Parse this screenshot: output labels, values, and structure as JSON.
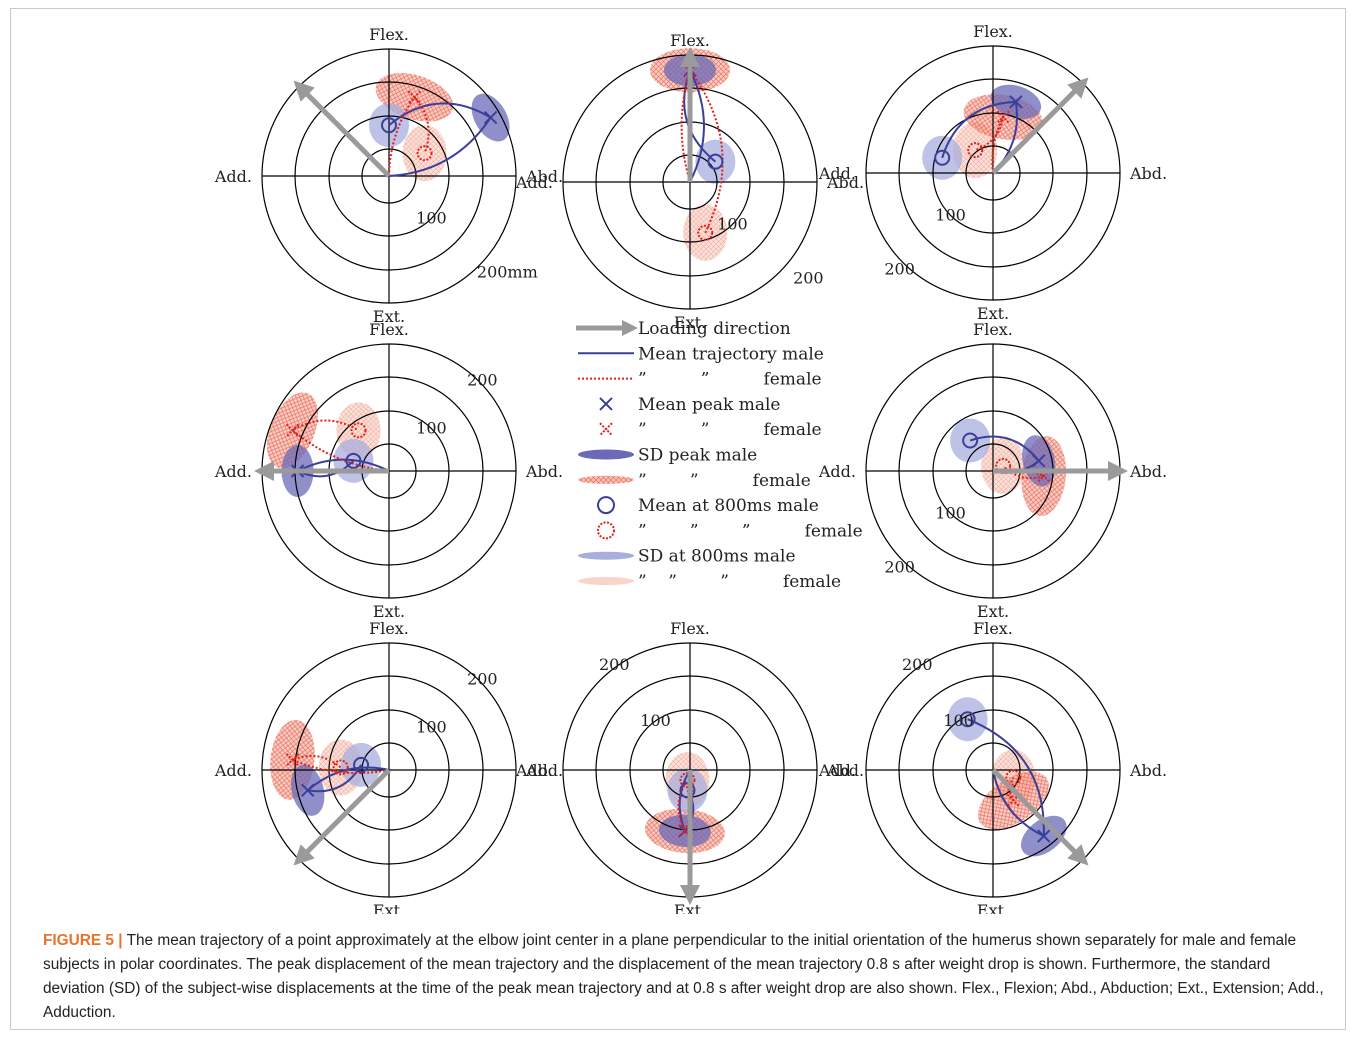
{
  "figure": {
    "caption_label": "FIGURE 5",
    "caption_separator": "|",
    "caption_text": "The mean trajectory of a point approximately at the elbow joint center in a plane perpendicular to the initial orientation of the humerus shown separately for male and female subjects in polar coordinates. The peak displacement of the mean trajectory and the displacement of the mean trajectory 0.8 s after weight drop is shown. Furthermore, the standard deviation (SD) of the subject-wise displacements at the time of the peak mean trajectory and at 0.8 s after weight drop are also shown. Flex., Flexion; Abd., Abduction; Ext., Extension; Add., Adduction."
  },
  "colors": {
    "male": "#3a3f9a",
    "male_sd": "#6a6ab8",
    "male_sd800": "#a8aede",
    "female": "#e0201c",
    "female_sd": "#f0a090",
    "female_sd800": "#f6cabc",
    "arrow": "#9a9a9a",
    "grid": "#000000"
  },
  "legend": [
    {
      "symbol": "arrow-icon",
      "label": "Loading direction"
    },
    {
      "symbol": "male-line",
      "label": "Mean trajectory male"
    },
    {
      "symbol": "female-line",
      "label": "”          ”          female"
    },
    {
      "symbol": "male-x",
      "label": "Mean peak male"
    },
    {
      "symbol": "female-x",
      "label": "”          ”          female"
    },
    {
      "symbol": "male-sd",
      "label": "SD peak male"
    },
    {
      "symbol": "female-sd",
      "label": "”        ”          female"
    },
    {
      "symbol": "male-circle",
      "label": "Mean at 800ms male"
    },
    {
      "symbol": "female-circle",
      "label": "”        ”        ”          female"
    },
    {
      "symbol": "male-sd800",
      "label": "SD at 800ms male"
    },
    {
      "symbol": "female-sd800",
      "label": "”    ”        ”          female"
    }
  ],
  "chart_data": [
    {
      "type": "polar",
      "panel": "top-left",
      "directions": {
        "up": "Flex.",
        "right": "Abd.",
        "down": "Ext.",
        "left": "Add."
      },
      "rlabels": [
        "100",
        "200mm"
      ],
      "rmax": 250,
      "loading_direction_deg": 135,
      "male": {
        "peak": [
          115,
          200
        ],
        "at800": [
          100,
          0
        ]
      },
      "female": {
        "peak": [
          155,
          50
        ],
        "at800": [
          45,
          70
        ]
      }
    },
    {
      "type": "polar",
      "panel": "top-center",
      "directions": {
        "up": "Flex.",
        "right": "Abd.",
        "down": "Ext.",
        "left": "Add."
      },
      "rlabels": [
        "100",
        "200"
      ],
      "rmax": 250,
      "loading_direction_deg": 90,
      "male": {
        "peak": [
          220,
          0
        ],
        "at800": [
          40,
          50
        ]
      },
      "female": {
        "peak": [
          220,
          0
        ],
        "at800": [
          -100,
          30
        ]
      }
    },
    {
      "type": "polar",
      "panel": "top-right",
      "directions": {
        "up": "Flex.",
        "right": "Abd.",
        "down": "Ext.",
        "left": "Add."
      },
      "rlabels": [
        "100",
        "200"
      ],
      "rmax": 250,
      "loading_direction_deg": 45,
      "male": {
        "peak": [
          140,
          45
        ],
        "at800": [
          30,
          -100
        ]
      },
      "female": {
        "peak": [
          110,
          20
        ],
        "at800": [
          45,
          -35
        ]
      }
    },
    {
      "type": "polar",
      "panel": "middle-left",
      "directions": {
        "up": "Flex.",
        "right": "Abd.",
        "down": "Ext.",
        "left": "Add."
      },
      "rlabels": [
        "100",
        "200"
      ],
      "rmax": 250,
      "loading_direction_deg": 180,
      "male": {
        "peak": [
          0,
          -180
        ],
        "at800": [
          20,
          -70
        ]
      },
      "female": {
        "peak": [
          80,
          -190
        ],
        "at800": [
          80,
          -60
        ]
      }
    },
    {
      "type": "polar",
      "panel": "middle-right",
      "directions": {
        "up": "Flex.",
        "right": "Abd.",
        "down": "Ext.",
        "left": "Add."
      },
      "rlabels": [
        "100",
        "200"
      ],
      "rmax": 250,
      "loading_direction_deg": 0,
      "male": {
        "peak": [
          20,
          90
        ],
        "at800": [
          60,
          -45
        ]
      },
      "female": {
        "peak": [
          -10,
          100
        ],
        "at800": [
          10,
          20
        ]
      }
    },
    {
      "type": "polar",
      "panel": "bottom-left",
      "directions": {
        "up": "Flex.",
        "right": "Abd.",
        "down": "Ext.",
        "left": "Add."
      },
      "rlabels": [
        "100",
        "200"
      ],
      "rmax": 250,
      "loading_direction_deg": 225,
      "male": {
        "peak": [
          -40,
          -160
        ],
        "at800": [
          10,
          -55
        ]
      },
      "female": {
        "peak": [
          20,
          -190
        ],
        "at800": [
          5,
          -95
        ]
      }
    },
    {
      "type": "polar",
      "panel": "bottom-center",
      "directions": {
        "up": "Flex.",
        "right": "Abd.",
        "down": "Ext.",
        "left": "Add."
      },
      "rlabels": [
        "100",
        "200"
      ],
      "rmax": 250,
      "loading_direction_deg": 270,
      "male": {
        "peak": [
          -120,
          -10
        ],
        "at800": [
          -40,
          -5
        ]
      },
      "female": {
        "peak": [
          -120,
          -10
        ],
        "at800": [
          -20,
          -5
        ]
      }
    },
    {
      "type": "polar",
      "panel": "bottom-right",
      "directions": {
        "up": "Flex.",
        "right": "Abd.",
        "down": "Ext.",
        "left": "Add."
      },
      "rlabels": [
        "100",
        "200"
      ],
      "rmax": 250,
      "loading_direction_deg": 315,
      "male": {
        "peak": [
          -130,
          100
        ],
        "at800": [
          100,
          -50
        ]
      },
      "female": {
        "peak": [
          -60,
          40
        ],
        "at800": [
          -15,
          40
        ]
      }
    }
  ]
}
